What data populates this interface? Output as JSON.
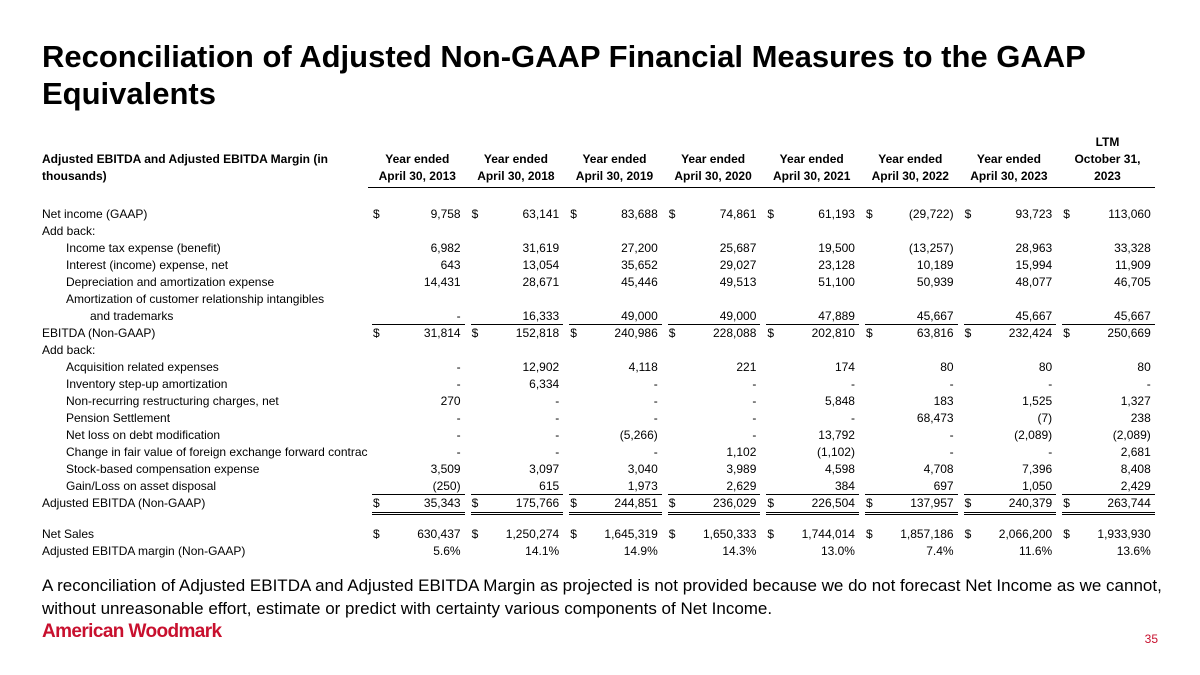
{
  "title": "Reconciliation of Adjusted Non-GAAP Financial Measures to the GAAP Equivalents",
  "table": {
    "header_label": [
      "Adjusted EBITDA and Adjusted EBITDA Margin (in",
      "thousands)"
    ],
    "columns": [
      [
        "Year ended",
        "April 30, 2013"
      ],
      [
        "Year ended",
        "April 30, 2018"
      ],
      [
        "Year ended",
        "April 30, 2019"
      ],
      [
        "Year ended",
        "April 30, 2020"
      ],
      [
        "Year ended",
        "April 30, 2021"
      ],
      [
        "Year ended",
        "April 30, 2022"
      ],
      [
        "Year ended",
        "April 30, 2023"
      ],
      [
        "LTM",
        "October 31,",
        "2023"
      ]
    ],
    "currency": "$",
    "rows": [
      {
        "label": "Net income (GAAP)",
        "currency": true,
        "space_before": true,
        "cells": [
          "9,758",
          "63,141",
          "83,688",
          "74,861",
          "61,193",
          "(29,722)",
          "93,723",
          "113,060"
        ]
      },
      {
        "label": "Add back:"
      },
      {
        "label": "Income tax expense (benefit)",
        "indent": 1,
        "cells": [
          "6,982",
          "31,619",
          "27,200",
          "25,687",
          "19,500",
          "(13,257)",
          "28,963",
          "33,328"
        ]
      },
      {
        "label": "Interest (income) expense, net",
        "indent": 1,
        "cells": [
          "643",
          "13,054",
          "35,652",
          "29,027",
          "23,128",
          "10,189",
          "15,994",
          "11,909"
        ]
      },
      {
        "label": "Depreciation and amortization expense",
        "indent": 1,
        "cells": [
          "14,431",
          "28,671",
          "45,446",
          "49,513",
          "51,100",
          "50,939",
          "48,077",
          "46,705"
        ]
      },
      {
        "label": "Amortization of customer relationship intangibles",
        "indent": 1
      },
      {
        "label": "and trademarks",
        "indent": 2,
        "cells": [
          "-",
          "16,333",
          "49,000",
          "49,000",
          "47,889",
          "45,667",
          "45,667",
          "45,667"
        ]
      },
      {
        "label": "EBITDA (Non-GAAP)",
        "currency": true,
        "rule": "single",
        "cells": [
          "31,814",
          "152,818",
          "240,986",
          "228,088",
          "202,810",
          "63,816",
          "232,424",
          "250,669"
        ]
      },
      {
        "label": "Add back:"
      },
      {
        "label": "Acquisition related expenses",
        "indent": 1,
        "cells": [
          "-",
          "12,902",
          "4,118",
          "221",
          "174",
          "80",
          "80",
          "80"
        ]
      },
      {
        "label": "Inventory step-up amortization",
        "indent": 1,
        "cells": [
          "-",
          "6,334",
          "-",
          "-",
          "-",
          "-",
          "-",
          "-"
        ]
      },
      {
        "label": "Non-recurring restructuring charges, net",
        "indent": 1,
        "cells": [
          "270",
          "-",
          "-",
          "-",
          "5,848",
          "183",
          "1,525",
          "1,327"
        ]
      },
      {
        "label": "Pension Settlement",
        "indent": 1,
        "cells": [
          "-",
          "-",
          "-",
          "-",
          "-",
          "68,473",
          "(7)",
          "238"
        ]
      },
      {
        "label": "Net loss on debt modification",
        "indent": 1,
        "cells": [
          "-",
          "-",
          "(5,266)",
          "-",
          "13,792",
          "-",
          "(2,089)",
          "(2,089)"
        ]
      },
      {
        "label": "Change in fair value of foreign exchange forward contrac",
        "indent": 1,
        "cells": [
          "-",
          "-",
          "-",
          "1,102",
          "(1,102)",
          "-",
          "-",
          "2,681"
        ]
      },
      {
        "label": "Stock-based compensation expense",
        "indent": 1,
        "cells": [
          "3,509",
          "3,097",
          "3,040",
          "3,989",
          "4,598",
          "4,708",
          "7,396",
          "8,408"
        ]
      },
      {
        "label": "Gain/Loss on asset disposal",
        "indent": 1,
        "cells": [
          "(250)",
          "615",
          "1,973",
          "2,629",
          "384",
          "697",
          "1,050",
          "2,429"
        ]
      },
      {
        "label": "Adjusted EBITDA (Non-GAAP)",
        "currency": true,
        "rule": "double",
        "cells": [
          "35,343",
          "175,766",
          "244,851",
          "236,029",
          "226,504",
          "137,957",
          "240,379",
          "263,744"
        ]
      },
      {
        "label": "Net Sales",
        "currency": true,
        "space_before": true,
        "cells": [
          "630,437",
          "1,250,274",
          "1,645,319",
          "1,650,333",
          "1,744,014",
          "1,857,186",
          "2,066,200",
          "1,933,930"
        ]
      },
      {
        "label": "Adjusted EBITDA margin (Non-GAAP)",
        "cells": [
          "5.6%",
          "14.1%",
          "14.9%",
          "14.3%",
          "13.0%",
          "7.4%",
          "11.6%",
          "13.6%"
        ]
      }
    ]
  },
  "footnote": "A reconciliation of Adjusted EBITDA and Adjusted EBITDA Margin as projected is not provided because we do not forecast Net Income as we cannot, without unreasonable effort, estimate or predict with certainty various components of Net Income.",
  "logo": "American Woodmark",
  "page_number": "35"
}
